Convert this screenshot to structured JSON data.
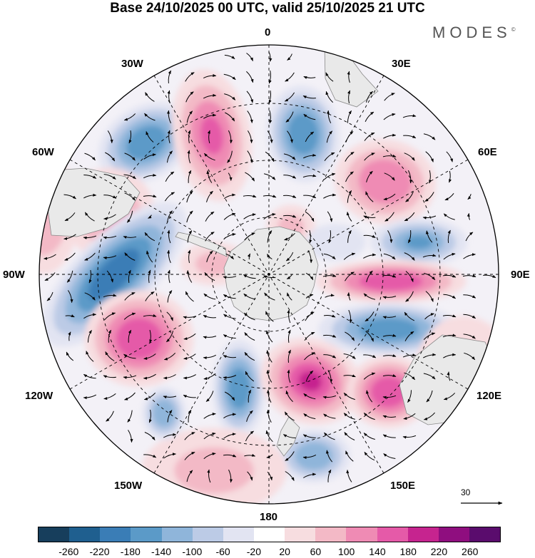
{
  "title": "Base 24/10/2025 00 UTC, valid 25/10/2025 21 UTC",
  "brand": "MODES",
  "brand_mark": "©",
  "longitude_labels": {
    "lon_0": "0",
    "lon_30e": "30E",
    "lon_60e": "60E",
    "lon_90e": "90E",
    "lon_120e": "120E",
    "lon_150e": "150E",
    "lon_180": "180",
    "lon_150w": "150W",
    "lon_120w": "120W",
    "lon_90w": "90W",
    "lon_60w": "60W",
    "lon_30w": "30W"
  },
  "reference_vector": {
    "label": "30"
  },
  "colorbar": {
    "colors": [
      "#173e5c",
      "#1f5f8f",
      "#3a7db6",
      "#5b9ac8",
      "#8fb5da",
      "#bccbe6",
      "#e2e4f2",
      "#ffffff",
      "#f7dde0",
      "#f3b9c6",
      "#ef8bb4",
      "#e55aa8",
      "#c6248f",
      "#8f0e7f",
      "#5a0c6d"
    ],
    "tick_labels": [
      "-260",
      "-220",
      "-180",
      "-140",
      "-100",
      "-60",
      "-20",
      "20",
      "60",
      "100",
      "140",
      "180",
      "220",
      "260"
    ]
  },
  "anomaly_centers": [
    {
      "sign": "negative",
      "value": -160
    },
    {
      "sign": "positive",
      "value": 140
    },
    {
      "sign": "negative",
      "value": -170
    },
    {
      "sign": "positive",
      "value": 120
    },
    {
      "sign": "negative",
      "value": -150
    },
    {
      "sign": "positive",
      "value": 170
    },
    {
      "sign": "negative",
      "value": -160
    },
    {
      "sign": "positive",
      "value": 110
    },
    {
      "sign": "negative",
      "value": -200
    },
    {
      "sign": "positive",
      "value": 170
    },
    {
      "sign": "negative",
      "value": -180
    },
    {
      "sign": "positive",
      "value": 190
    },
    {
      "sign": "positive",
      "value": 160
    },
    {
      "sign": "negative",
      "value": -130
    },
    {
      "sign": "positive",
      "value": 60
    },
    {
      "sign": "positive",
      "value": 70
    },
    {
      "sign": "negative",
      "value": -60
    },
    {
      "sign": "positive",
      "value": 60
    },
    {
      "sign": "negative",
      "value": -140
    },
    {
      "sign": "positive",
      "value": 80
    },
    {
      "sign": "positive",
      "value": 70
    }
  ]
}
